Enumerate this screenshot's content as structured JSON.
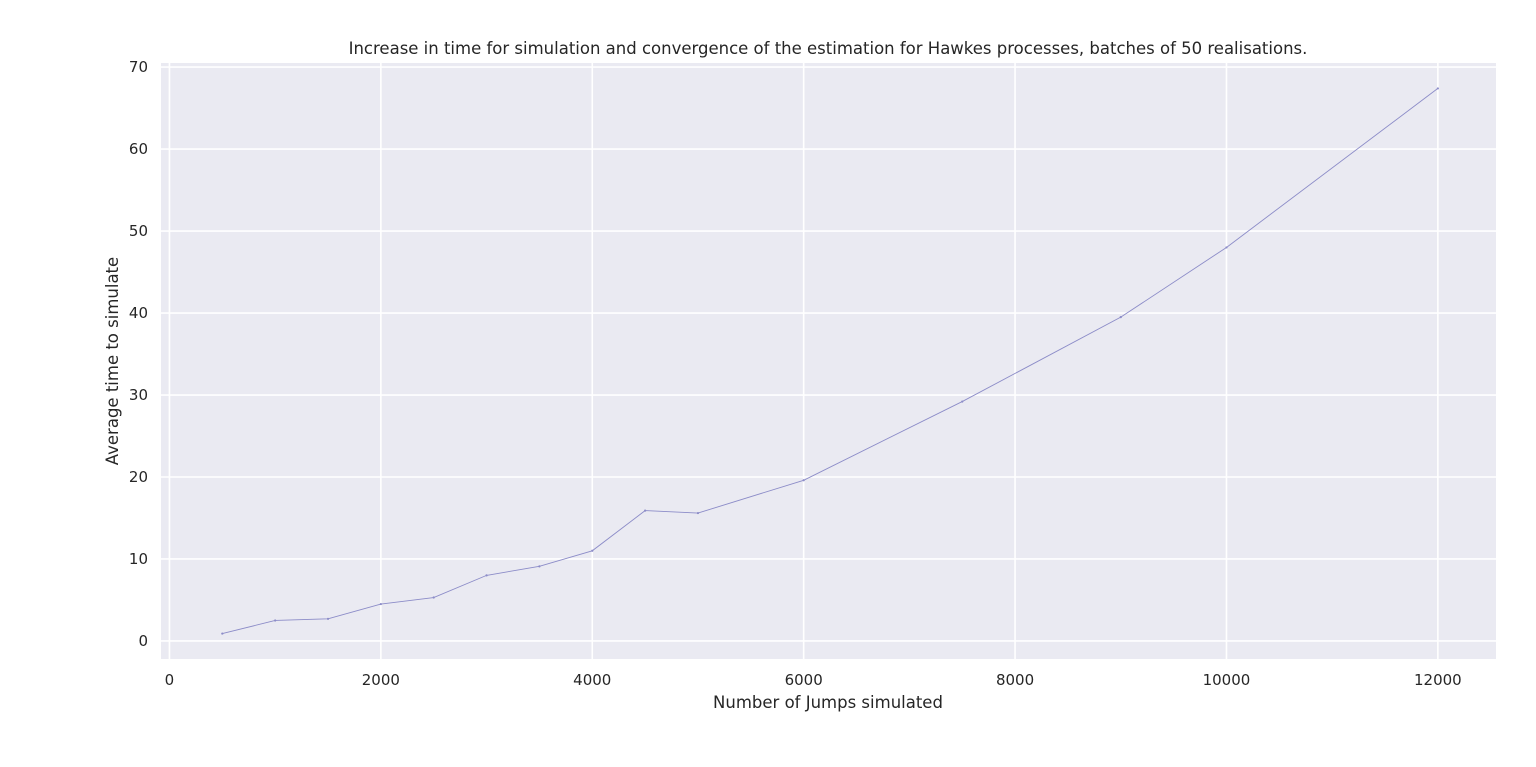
{
  "chart_data": {
    "type": "line",
    "title": "Increase in time for simulation and convergence of the estimation for Hawkes processes, batches of 50 realisations.",
    "xlabel": "Number of Jumps simulated",
    "ylabel": "Average time to simulate",
    "xlim": [
      -80,
      12550
    ],
    "ylim": [
      -2.2,
      70.5
    ],
    "xticks": [
      0,
      2000,
      4000,
      6000,
      8000,
      10000,
      12000
    ],
    "yticks": [
      0,
      10,
      20,
      30,
      40,
      50,
      60,
      70
    ],
    "grid": true,
    "background_color": "#EAEAF2",
    "grid_color": "#FFFFFF",
    "series": [
      {
        "color": "#8C8CC8",
        "x": [
          500,
          1000,
          1500,
          2000,
          2500,
          3000,
          3500,
          4000,
          4500,
          5000,
          6000,
          7500,
          9000,
          10000,
          12000
        ],
        "y": [
          0.9,
          2.5,
          2.7,
          4.5,
          5.3,
          8.0,
          9.1,
          11.0,
          15.9,
          15.6,
          19.6,
          29.2,
          39.5,
          48.0,
          67.4
        ]
      }
    ]
  }
}
